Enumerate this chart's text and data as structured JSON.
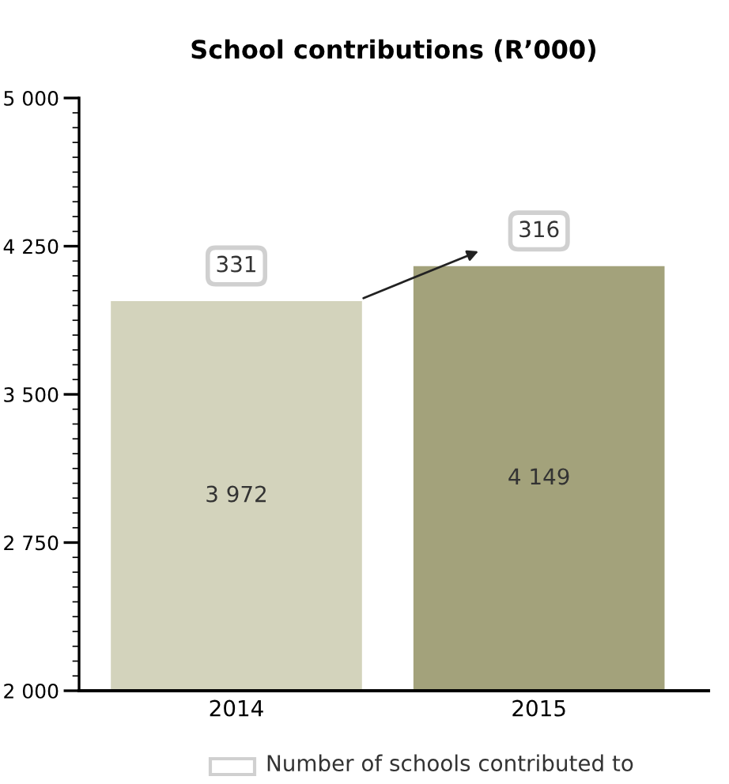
{
  "chart_data": {
    "type": "bar",
    "title": "School contributions (R’000)",
    "categories": [
      "2014",
      "2015"
    ],
    "values": [
      3972,
      4149
    ],
    "colors": [
      "#d3d3bc",
      "#a3a27b"
    ],
    "value_labels": [
      "3 972",
      "4 149"
    ],
    "ylim": [
      2000,
      5000
    ],
    "yticks": [
      {
        "value": 2000,
        "label": "2 000"
      },
      {
        "value": 2750,
        "label": "2 750"
      },
      {
        "value": 3500,
        "label": "3 500"
      },
      {
        "value": 4250,
        "label": "4 250"
      },
      {
        "value": 5000,
        "label": "5 000"
      }
    ],
    "annotations": [
      {
        "text": "331",
        "x": "2014",
        "y": 3972
      },
      {
        "text": "316",
        "x": "2015",
        "y": 4149
      },
      "Number of schools contributed to"
    ],
    "grid": false,
    "legend": false
  }
}
